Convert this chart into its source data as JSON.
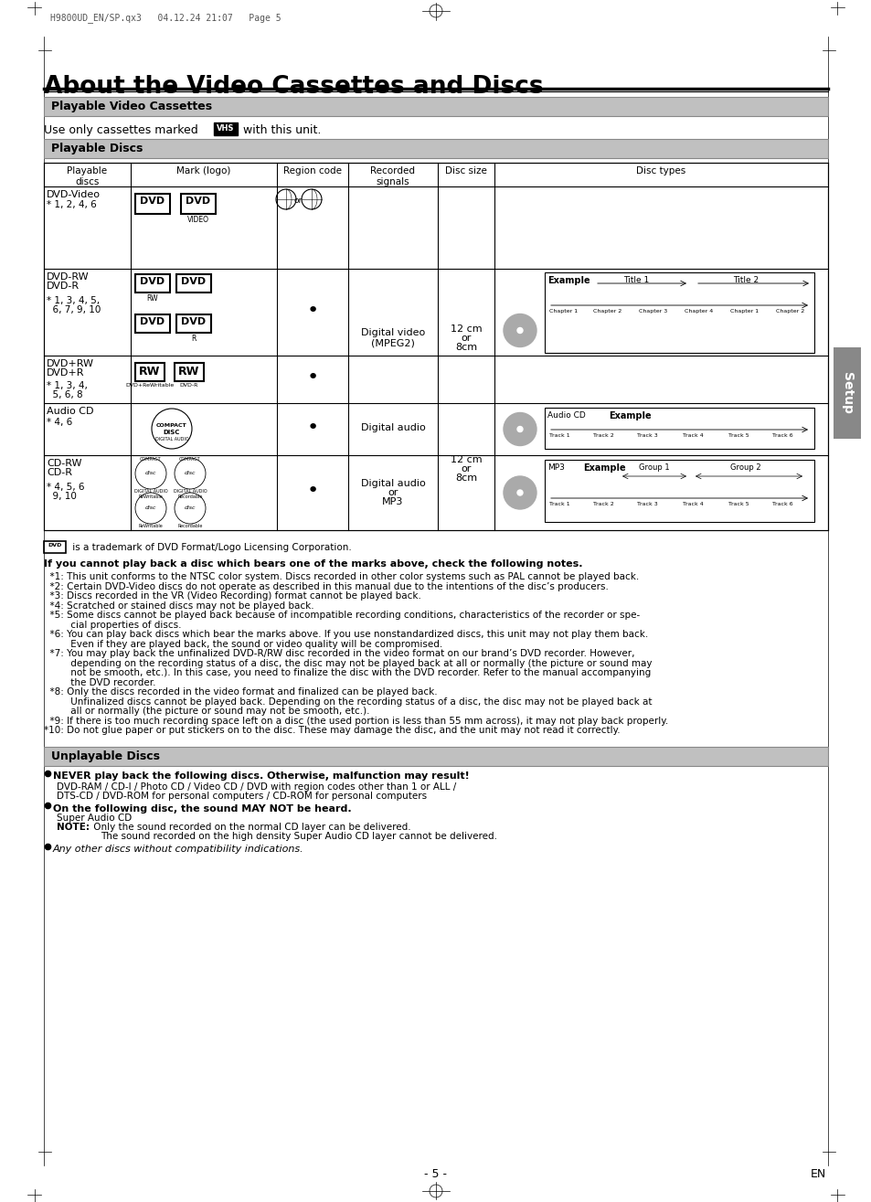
{
  "page_header": "H9800UD_EN/SP.qx3   04.12.24 21:07   Page 5",
  "title": "About the Video Cassettes and Discs",
  "section1_header": "Playable Video Cassettes",
  "section2_header": "Playable Discs",
  "table_col_headers": [
    "Playable\ndiscs",
    "Mark (logo)",
    "Region code",
    "Recorded\nsignals",
    "Disc size",
    "Disc types"
  ],
  "dvd_trademark": " is a trademark of DVD Format/Logo Licensing Corporation.",
  "cannot_play_header": "If you cannot play back a disc which bears one of the marks above, check the following notes.",
  "notes": [
    "  *1: This unit conforms to the NTSC color system. Discs recorded in other color systems such as PAL cannot be played back.",
    "  *2: Certain DVD-Video discs do not operate as described in this manual due to the intentions of the disc’s producers.",
    "  *3: Discs recorded in the VR (Video Recording) format cannot be played back.",
    "  *4: Scratched or stained discs may not be played back.",
    "  *5: Some discs cannot be played back because of incompatible recording conditions, characteristics of the recorder or spe-",
    "         cial properties of discs.",
    "  *6: You can play back discs which bear the marks above. If you use nonstandardized discs, this unit may not play them back.",
    "         Even if they are played back, the sound or video quality will be compromised.",
    "  *7: You may play back the unfinalized DVD-R/RW disc recorded in the video format on our brand’s DVD recorder. However,",
    "         depending on the recording status of a disc, the disc may not be played back at all or normally (the picture or sound may",
    "         not be smooth, etc.). In this case, you need to finalize the disc with the DVD recorder. Refer to the manual accompanying",
    "         the DVD recorder.",
    "  *8: Only the discs recorded in the video format and finalized can be played back.",
    "         Unfinalized discs cannot be played back. Depending on the recording status of a disc, the disc may not be played back at",
    "         all or normally (the picture or sound may not be smooth, etc.).",
    "  *9: If there is too much recording space left on a disc (the used portion is less than 55 mm across), it may not play back properly.",
    "*10: Do not glue paper or put stickers on to the disc. These may damage the disc, and the unit may not read it correctly."
  ],
  "section3_header": "Unplayable Discs",
  "bullet1_bold": "NEVER play back the following discs. Otherwise, malfunction may result!",
  "bullet1_normal1": "DVD-RAM / CD-I / Photo CD / Video CD / DVD with region codes other than 1 or ALL /",
  "bullet1_normal2": "DTS-CD / DVD-ROM for personal computers / CD-ROM for personal computers",
  "bullet2_bold": "On the following disc, the sound MAY NOT be heard.",
  "bullet2_normal1": "Super Audio CD",
  "bullet2_note_bold": "NOTE:",
  "bullet2_note1": " Only the sound recorded on the normal CD layer can be delivered.",
  "bullet2_note2": "The sound recorded on the high density Super Audio CD layer cannot be delivered.",
  "bullet3_italic": "Any other discs without compatibility indications.",
  "page_number": "- 5 -",
  "page_en": "EN",
  "setup_tab": "Setup"
}
